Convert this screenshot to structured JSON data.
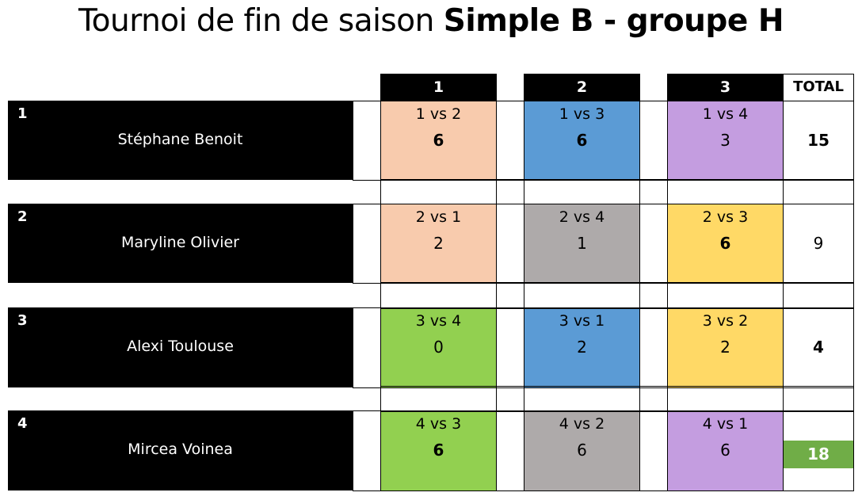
{
  "title": {
    "normal": "Tournoi de fin de saison ",
    "bold": "Simple B - groupe H"
  },
  "headers": [
    "1",
    "2",
    "3",
    "TOTAL"
  ],
  "colors": {
    "peach": "#f8cbad",
    "blue": "#5b9bd5",
    "purple": "#c49de0",
    "grey": "#aeaaaa",
    "yellow": "#ffd966",
    "green": "#92d050",
    "winner": "#70ad47"
  },
  "players": [
    {
      "num": "1",
      "name": "Stéphane Benoit",
      "total": "15",
      "total_bold": true,
      "winner": false,
      "matches": [
        {
          "label": "1 vs 2",
          "score": "6",
          "bold": true,
          "color": "peach"
        },
        {
          "label": "1 vs 3",
          "score": "6",
          "bold": true,
          "color": "blue"
        },
        {
          "label": "1 vs 4",
          "score": "3",
          "bold": false,
          "color": "purple"
        }
      ]
    },
    {
      "num": "2",
      "name": "Maryline Olivier",
      "total": "9",
      "total_bold": false,
      "winner": false,
      "matches": [
        {
          "label": "2 vs 1",
          "score": "2",
          "bold": false,
          "color": "peach"
        },
        {
          "label": "2 vs 4",
          "score": "1",
          "bold": false,
          "color": "grey"
        },
        {
          "label": "2 vs 3",
          "score": "6",
          "bold": true,
          "color": "yellow"
        }
      ]
    },
    {
      "num": "3",
      "name": "Alexi Toulouse",
      "total": "4",
      "total_bold": true,
      "winner": false,
      "matches": [
        {
          "label": "3 vs 4",
          "score": "0",
          "bold": false,
          "color": "green"
        },
        {
          "label": "3 vs 1",
          "score": "2",
          "bold": false,
          "color": "blue"
        },
        {
          "label": "3 vs 2",
          "score": "2",
          "bold": false,
          "color": "yellow"
        }
      ]
    },
    {
      "num": "4",
      "name": "Mircea Voinea",
      "total": "18",
      "total_bold": true,
      "winner": true,
      "matches": [
        {
          "label": "4 vs 3",
          "score": "6",
          "bold": true,
          "color": "green"
        },
        {
          "label": "4 vs 2",
          "score": "6",
          "bold": false,
          "color": "grey"
        },
        {
          "label": "4 vs 1",
          "score": "6",
          "bold": false,
          "color": "purple"
        }
      ]
    }
  ]
}
